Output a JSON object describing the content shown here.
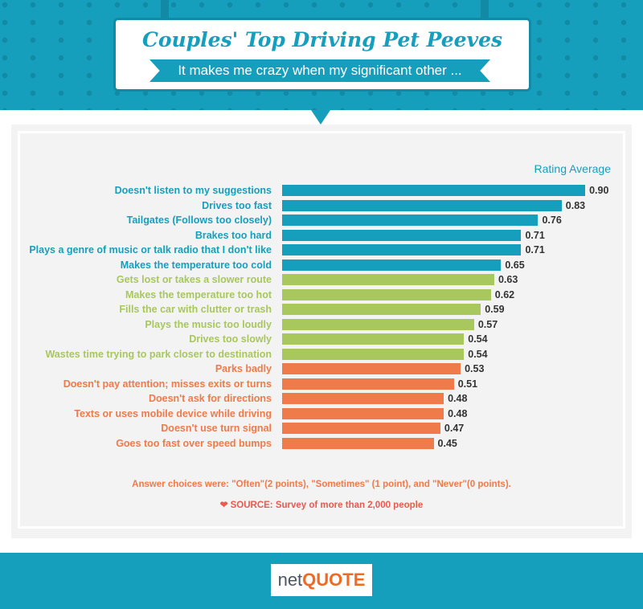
{
  "header": {
    "title": "Couples' Top Driving Pet Peeves",
    "subtitle": "It makes me crazy when my significant other ..."
  },
  "chart_data": {
    "type": "bar",
    "orientation": "horizontal",
    "value_label": "Rating Average",
    "categories": [
      "Doesn't listen to my suggestions",
      "Drives too fast",
      "Tailgates (Follows too closely)",
      "Brakes too hard",
      "Plays a genre of music or talk radio that I don't like",
      "Makes the temperature too cold",
      "Gets lost or takes a slower route",
      "Makes the temperature too hot",
      "Fills the car with clutter or trash",
      "Plays the music too loudly",
      "Drives too slowly",
      "Wastes time trying to park closer to destination",
      "Parks badly",
      "Doesn't pay attention; misses exits or turns",
      "Doesn't ask for directions",
      "Texts or uses mobile device while driving",
      "Doesn't use turn signal",
      "Goes too fast over speed bumps"
    ],
    "values": [
      0.9,
      0.83,
      0.76,
      0.71,
      0.71,
      0.65,
      0.63,
      0.62,
      0.59,
      0.57,
      0.54,
      0.54,
      0.53,
      0.51,
      0.48,
      0.48,
      0.47,
      0.45
    ],
    "value_labels": [
      "0.90",
      "0.83",
      "0.76",
      "0.71",
      "0.71",
      "0.65",
      "0.63",
      "0.62",
      "0.59",
      "0.57",
      "0.54",
      "0.54",
      "0.53",
      "0.51",
      "0.48",
      "0.48",
      "0.47",
      "0.45"
    ],
    "groups": [
      "blue",
      "blue",
      "blue",
      "blue",
      "blue",
      "blue",
      "green",
      "green",
      "green",
      "green",
      "green",
      "green",
      "orange",
      "orange",
      "orange",
      "orange",
      "orange",
      "orange"
    ],
    "colors": {
      "blue": "#169fbd",
      "green": "#a8c75c",
      "orange": "#ef7a4a"
    }
  },
  "footnote": {
    "note": "Answer choices were: \"Often\"(2 points), \"Sometimes\" (1 point), and \"Never\"(0 points).",
    "source": "SOURCE: Survey of more than 2,000 people"
  },
  "footer": {
    "logo_net": "net",
    "logo_quote": "QUOTE"
  }
}
